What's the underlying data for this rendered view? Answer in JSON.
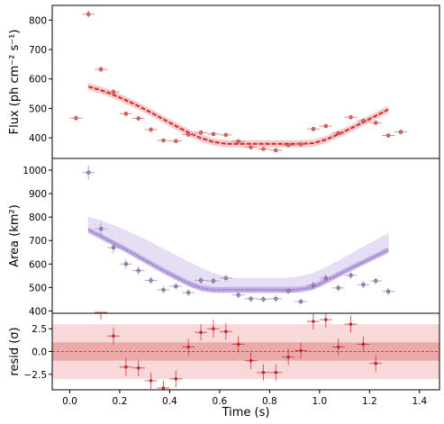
{
  "chart_data": [
    {
      "type": "scatter",
      "panel": "flux",
      "ylabel": "Flux (ph cm⁻² s⁻¹)",
      "xlim": [
        -0.07,
        1.48
      ],
      "ylim": [
        330,
        850
      ],
      "yticks": [
        400,
        500,
        600,
        700,
        800
      ],
      "grid": false,
      "points": {
        "color": "#e06666",
        "x": [
          0.025,
          0.075,
          0.125,
          0.175,
          0.225,
          0.275,
          0.325,
          0.375,
          0.425,
          0.475,
          0.525,
          0.575,
          0.625,
          0.675,
          0.725,
          0.775,
          0.825,
          0.875,
          0.925,
          0.975,
          1.025,
          1.075,
          1.125,
          1.175,
          1.225,
          1.275,
          1.325
        ],
        "y": [
          467,
          820,
          633,
          556,
          482,
          466,
          428,
          391,
          389,
          411,
          418,
          413,
          410,
          388,
          368,
          362,
          358,
          375,
          378,
          430,
          440,
          416,
          470,
          458,
          451,
          408,
          420
        ],
        "yerr": [
          9,
          12,
          10,
          10,
          8,
          8,
          8,
          7,
          7,
          8,
          7,
          7,
          7,
          7,
          7,
          6,
          6,
          7,
          7,
          8,
          8,
          7,
          8,
          8,
          8,
          7,
          8
        ]
      },
      "model": {
        "color": "#e06666",
        "x": [
          0.075,
          0.125,
          0.175,
          0.225,
          0.275,
          0.325,
          0.375,
          0.425,
          0.475,
          0.525,
          0.575,
          0.625,
          0.675,
          0.725,
          0.775,
          0.825,
          0.875,
          0.925,
          0.975,
          1.025,
          1.075,
          1.125,
          1.175,
          1.225,
          1.275
        ],
        "y": [
          574,
          562,
          546,
          528,
          508,
          486,
          463,
          440,
          418,
          399,
          386,
          380,
          380,
          380,
          380,
          380,
          380,
          380,
          382,
          394,
          412,
          432,
          453,
          475,
          496
        ],
        "band_half": 12
      }
    },
    {
      "type": "scatter",
      "panel": "area",
      "ylabel": "Area (km²)",
      "xlim": [
        -0.07,
        1.48
      ],
      "ylim": [
        390,
        1050
      ],
      "yticks": [
        400,
        500,
        600,
        700,
        800,
        900,
        1000
      ],
      "grid": false,
      "points": {
        "color": "#9b8cc4",
        "x": [
          0.075,
          0.125,
          0.175,
          0.225,
          0.275,
          0.325,
          0.375,
          0.425,
          0.475,
          0.525,
          0.575,
          0.625,
          0.675,
          0.725,
          0.775,
          0.825,
          0.875,
          0.925,
          0.975,
          1.025,
          1.075,
          1.125,
          1.175,
          1.225,
          1.275
        ],
        "y": [
          990,
          750,
          670,
          600,
          572,
          530,
          490,
          505,
          478,
          530,
          528,
          540,
          468,
          452,
          450,
          452,
          485,
          440,
          510,
          540,
          498,
          552,
          512,
          528,
          483
        ],
        "yerr": [
          30,
          28,
          25,
          20,
          18,
          16,
          15,
          15,
          15,
          15,
          15,
          16,
          15,
          14,
          14,
          14,
          15,
          13,
          15,
          16,
          15,
          16,
          15,
          15,
          15
        ]
      },
      "model": {
        "color": "#8e6ccf",
        "x": [
          0.075,
          0.125,
          0.175,
          0.225,
          0.275,
          0.325,
          0.375,
          0.425,
          0.475,
          0.525,
          0.575,
          0.625,
          0.675,
          0.725,
          0.775,
          0.825,
          0.875,
          0.925,
          0.975,
          1.025,
          1.075,
          1.125,
          1.175,
          1.225,
          1.275
        ],
        "y": [
          745,
          718,
          690,
          662,
          632,
          602,
          572,
          545,
          518,
          498,
          490,
          490,
          490,
          490,
          490,
          490,
          490,
          492,
          503,
          528,
          555,
          582,
          608,
          634,
          660
        ],
        "band_lower_half": 12,
        "band_upper": [
          800,
          784,
          764,
          742,
          718,
          692,
          664,
          636,
          608,
          582,
          560,
          544,
          538,
          538,
          538,
          538,
          540,
          546,
          560,
          584,
          612,
          642,
          672,
          702,
          730
        ]
      }
    },
    {
      "type": "scatter",
      "panel": "residuals",
      "xlabel": "Time (s)",
      "ylabel": "resid (σ)",
      "xlim": [
        -0.07,
        1.48
      ],
      "ylim": [
        -4.2,
        4.2
      ],
      "yticks": [
        -2.5,
        0.0,
        2.5
      ],
      "yticklabels": [
        "−2.5",
        "0.0",
        "2.5"
      ],
      "xticks": [
        0.0,
        0.2,
        0.4,
        0.6,
        0.8,
        1.0,
        1.2,
        1.4
      ],
      "xticklabels": [
        "0.0",
        "0.2",
        "0.4",
        "0.6",
        "0.8",
        "1.0",
        "1.2",
        "1.4"
      ],
      "bands": {
        "inner": 1,
        "outer": 3
      },
      "points": {
        "color": "#d62728",
        "x": [
          0.125,
          0.175,
          0.225,
          0.275,
          0.325,
          0.375,
          0.425,
          0.475,
          0.525,
          0.575,
          0.625,
          0.675,
          0.725,
          0.775,
          0.825,
          0.875,
          0.925,
          0.975,
          1.025,
          1.075,
          1.125,
          1.175,
          1.225
        ],
        "y": [
          4.3,
          1.7,
          -1.7,
          -1.8,
          -3.2,
          -4.0,
          -3.0,
          0.5,
          2.1,
          2.5,
          2.2,
          0.8,
          -1.0,
          -2.3,
          -2.3,
          -0.6,
          0.1,
          3.3,
          3.5,
          0.5,
          3.0,
          0.8,
          -1.3
        ],
        "yerr": [
          0.8,
          0.9,
          1.0,
          0.9,
          0.9,
          0.8,
          0.9,
          0.9,
          0.9,
          1.0,
          0.9,
          0.9,
          0.9,
          0.9,
          0.9,
          0.9,
          0.9,
          0.9,
          0.9,
          0.9,
          0.9,
          0.9,
          0.9
        ]
      }
    }
  ]
}
